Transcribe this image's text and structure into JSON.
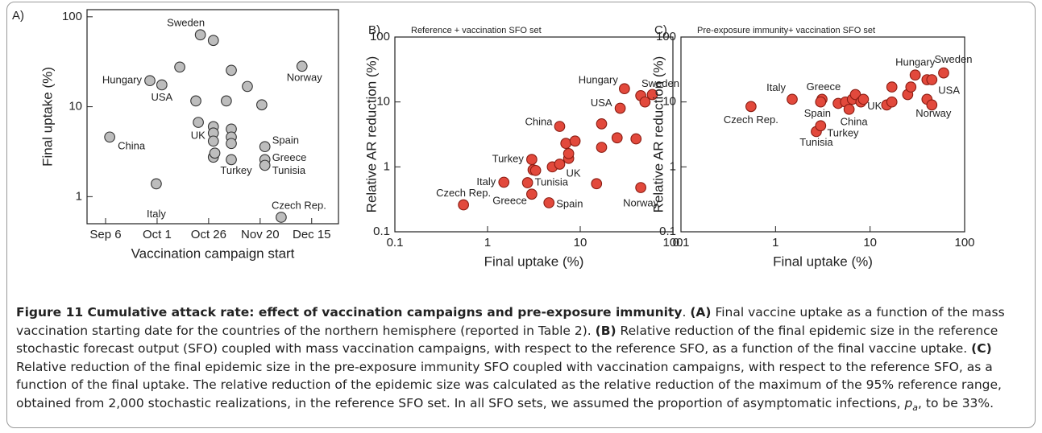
{
  "chart_data": [
    {
      "type": "scatter",
      "panel_label": "A)",
      "xlabel": "Vaccination campaign start",
      "ylabel": "Final uptake (%)",
      "xscale": "linear",
      "yscale": "log",
      "color": "#bdbdbd",
      "edgecolor": "#333333",
      "x": [
        251,
        270.5,
        276.3,
        273.6,
        285,
        295,
        301.3,
        292.8,
        294,
        301.3,
        301.3,
        301.3,
        310,
        307.6,
        301.3,
        302,
        310,
        310,
        310,
        310,
        317.8,
        324.8,
        326.3,
        326.3,
        326.3,
        334.2,
        344.3
      ],
      "values": [
        4.6,
        19.5,
        17.5,
        1.39,
        27.6,
        63,
        54.6,
        11.6,
        6.7,
        6.0,
        5.1,
        4.15,
        25.4,
        11.6,
        2.75,
        3.05,
        5.65,
        4.6,
        3.9,
        2.58,
        16.8,
        10.5,
        3.6,
        2.58,
        2.23,
        0.59,
        28.2
      ],
      "labels": [
        "China",
        "Hungary",
        "USA",
        "Italy",
        null,
        "Sweden",
        null,
        null,
        null,
        null,
        "UK",
        null,
        null,
        null,
        null,
        null,
        null,
        null,
        null,
        "Turkey",
        null,
        null,
        "Spain",
        "Greece",
        "Tunisia",
        "Czech Rep.",
        "Norway"
      ],
      "xlim": [
        240,
        362
      ],
      "ylim": [
        0.5,
        120
      ],
      "xticks": [
        {
          "value": 249,
          "label": "Sep 6"
        },
        {
          "value": 274,
          "label": "Oct 1"
        },
        {
          "value": 299,
          "label": "Oct 26"
        },
        {
          "value": 324,
          "label": "Nov 20"
        },
        {
          "value": 349,
          "label": "Dec 15"
        }
      ],
      "yticks": [
        1,
        10,
        100
      ]
    },
    {
      "type": "scatter",
      "panel_label": "B)",
      "subtitle": "Reference + vaccination SFO set",
      "xlabel": "Final uptake (%)",
      "ylabel": "Relative AR reduction (%)",
      "xscale": "log",
      "yscale": "log",
      "color": "#e2493c",
      "edgecolor": "#8a1c12",
      "x": [
        0.55,
        1.5,
        2.7,
        3.0,
        4.6,
        3.0,
        3.1,
        3.3,
        5.0,
        6.0,
        7.5,
        7.5,
        7.0,
        8.8,
        6.0,
        17,
        17,
        25,
        15,
        27,
        30,
        40,
        45,
        45,
        50,
        60
      ],
      "values": [
        0.26,
        0.58,
        0.57,
        0.38,
        0.28,
        1.3,
        0.9,
        0.88,
        1.0,
        1.1,
        1.35,
        1.6,
        2.3,
        2.5,
        4.2,
        2.0,
        4.6,
        2.8,
        0.55,
        8.0,
        16,
        2.7,
        0.48,
        12.5,
        10,
        13
      ],
      "labels": [
        "Czech Rep.",
        "Italy",
        "Tunisia",
        "Greece",
        "Spain",
        "Turkey",
        null,
        null,
        null,
        "UK",
        null,
        null,
        null,
        null,
        "China",
        null,
        null,
        null,
        null,
        "USA",
        "Hungary",
        null,
        "Norway",
        null,
        null,
        "Sweden"
      ],
      "xlim": [
        0.1,
        100
      ],
      "ylim": [
        0.1,
        100
      ],
      "xticks": [
        0.1,
        1,
        10,
        100
      ],
      "yticks": [
        0.1,
        1,
        10,
        100
      ]
    },
    {
      "type": "scatter",
      "panel_label": "C)",
      "subtitle": "Pre-exposure immunity+ vaccination SFO set",
      "xlabel": "Final uptake (%)",
      "ylabel": "Relative AR reduction (%)",
      "xscale": "log",
      "yscale": "log",
      "color": "#e2493c",
      "edgecolor": "#8a1c12",
      "x": [
        0.55,
        1.5,
        3.1,
        3.0,
        2.7,
        3.0,
        4.6,
        5.5,
        6.5,
        7.0,
        8.0,
        6.0,
        8.5,
        15,
        17,
        17,
        25,
        27,
        30,
        40,
        45,
        40,
        45,
        60
      ],
      "values": [
        8.5,
        11,
        11,
        10,
        3.5,
        4.3,
        9.5,
        10,
        11,
        13,
        10,
        7.7,
        11,
        9,
        10,
        17,
        13,
        17,
        26,
        11,
        9,
        22,
        22,
        28
      ],
      "labels": [
        "Czech Rep.",
        "Italy",
        "Greece",
        "Spain",
        "Tunisia",
        "Turkey",
        null,
        null,
        null,
        null,
        "UK",
        "China",
        null,
        null,
        null,
        null,
        null,
        null,
        "Hungary",
        "Norway",
        null,
        null,
        "USA",
        "Sweden"
      ],
      "xlim": [
        0.1,
        100
      ],
      "ylim": [
        0.1,
        100
      ],
      "xticks": [
        0.1,
        1,
        10,
        100
      ],
      "yticks": [
        0.1,
        1,
        10,
        100
      ]
    }
  ],
  "caption": [
    {
      "text": "Figure 11 Cumulative attack rate: effect of vaccination campaigns and pre-exposure immunity",
      "style": "bold"
    },
    {
      "text": ". "
    },
    {
      "text": "(A)",
      "style": "bold"
    },
    {
      "text": " Final vaccine uptake as a function of the mass vaccination starting date for the countries of the northern hemisphere (reported in Table 2). "
    },
    {
      "text": "(B)",
      "style": "bold"
    },
    {
      "text": " Relative reduction of the final epidemic size in the reference stochastic forecast output (SFO) coupled with mass vaccination campaigns, with respect to the reference SFO, as a function of the final vaccine uptake. "
    },
    {
      "text": "(C)",
      "style": "bold"
    },
    {
      "text": " Relative reduction of the final epidemic size in the pre-exposure immunity SFO coupled with vaccination campaigns, with respect to the reference SFO, as a function of the final uptake. The relative reduction of the epidemic size was calculated as the relative reduction of the maximum of the 95% reference range, obtained from 2,000 stochastic realizations, in the reference SFO set. In all SFO sets, we assumed the proportion of asymptomatic infections, "
    },
    {
      "text": "p",
      "style": "italic"
    },
    {
      "text": "a",
      "style": "subscript"
    },
    {
      "text": ", to be 33%."
    }
  ]
}
